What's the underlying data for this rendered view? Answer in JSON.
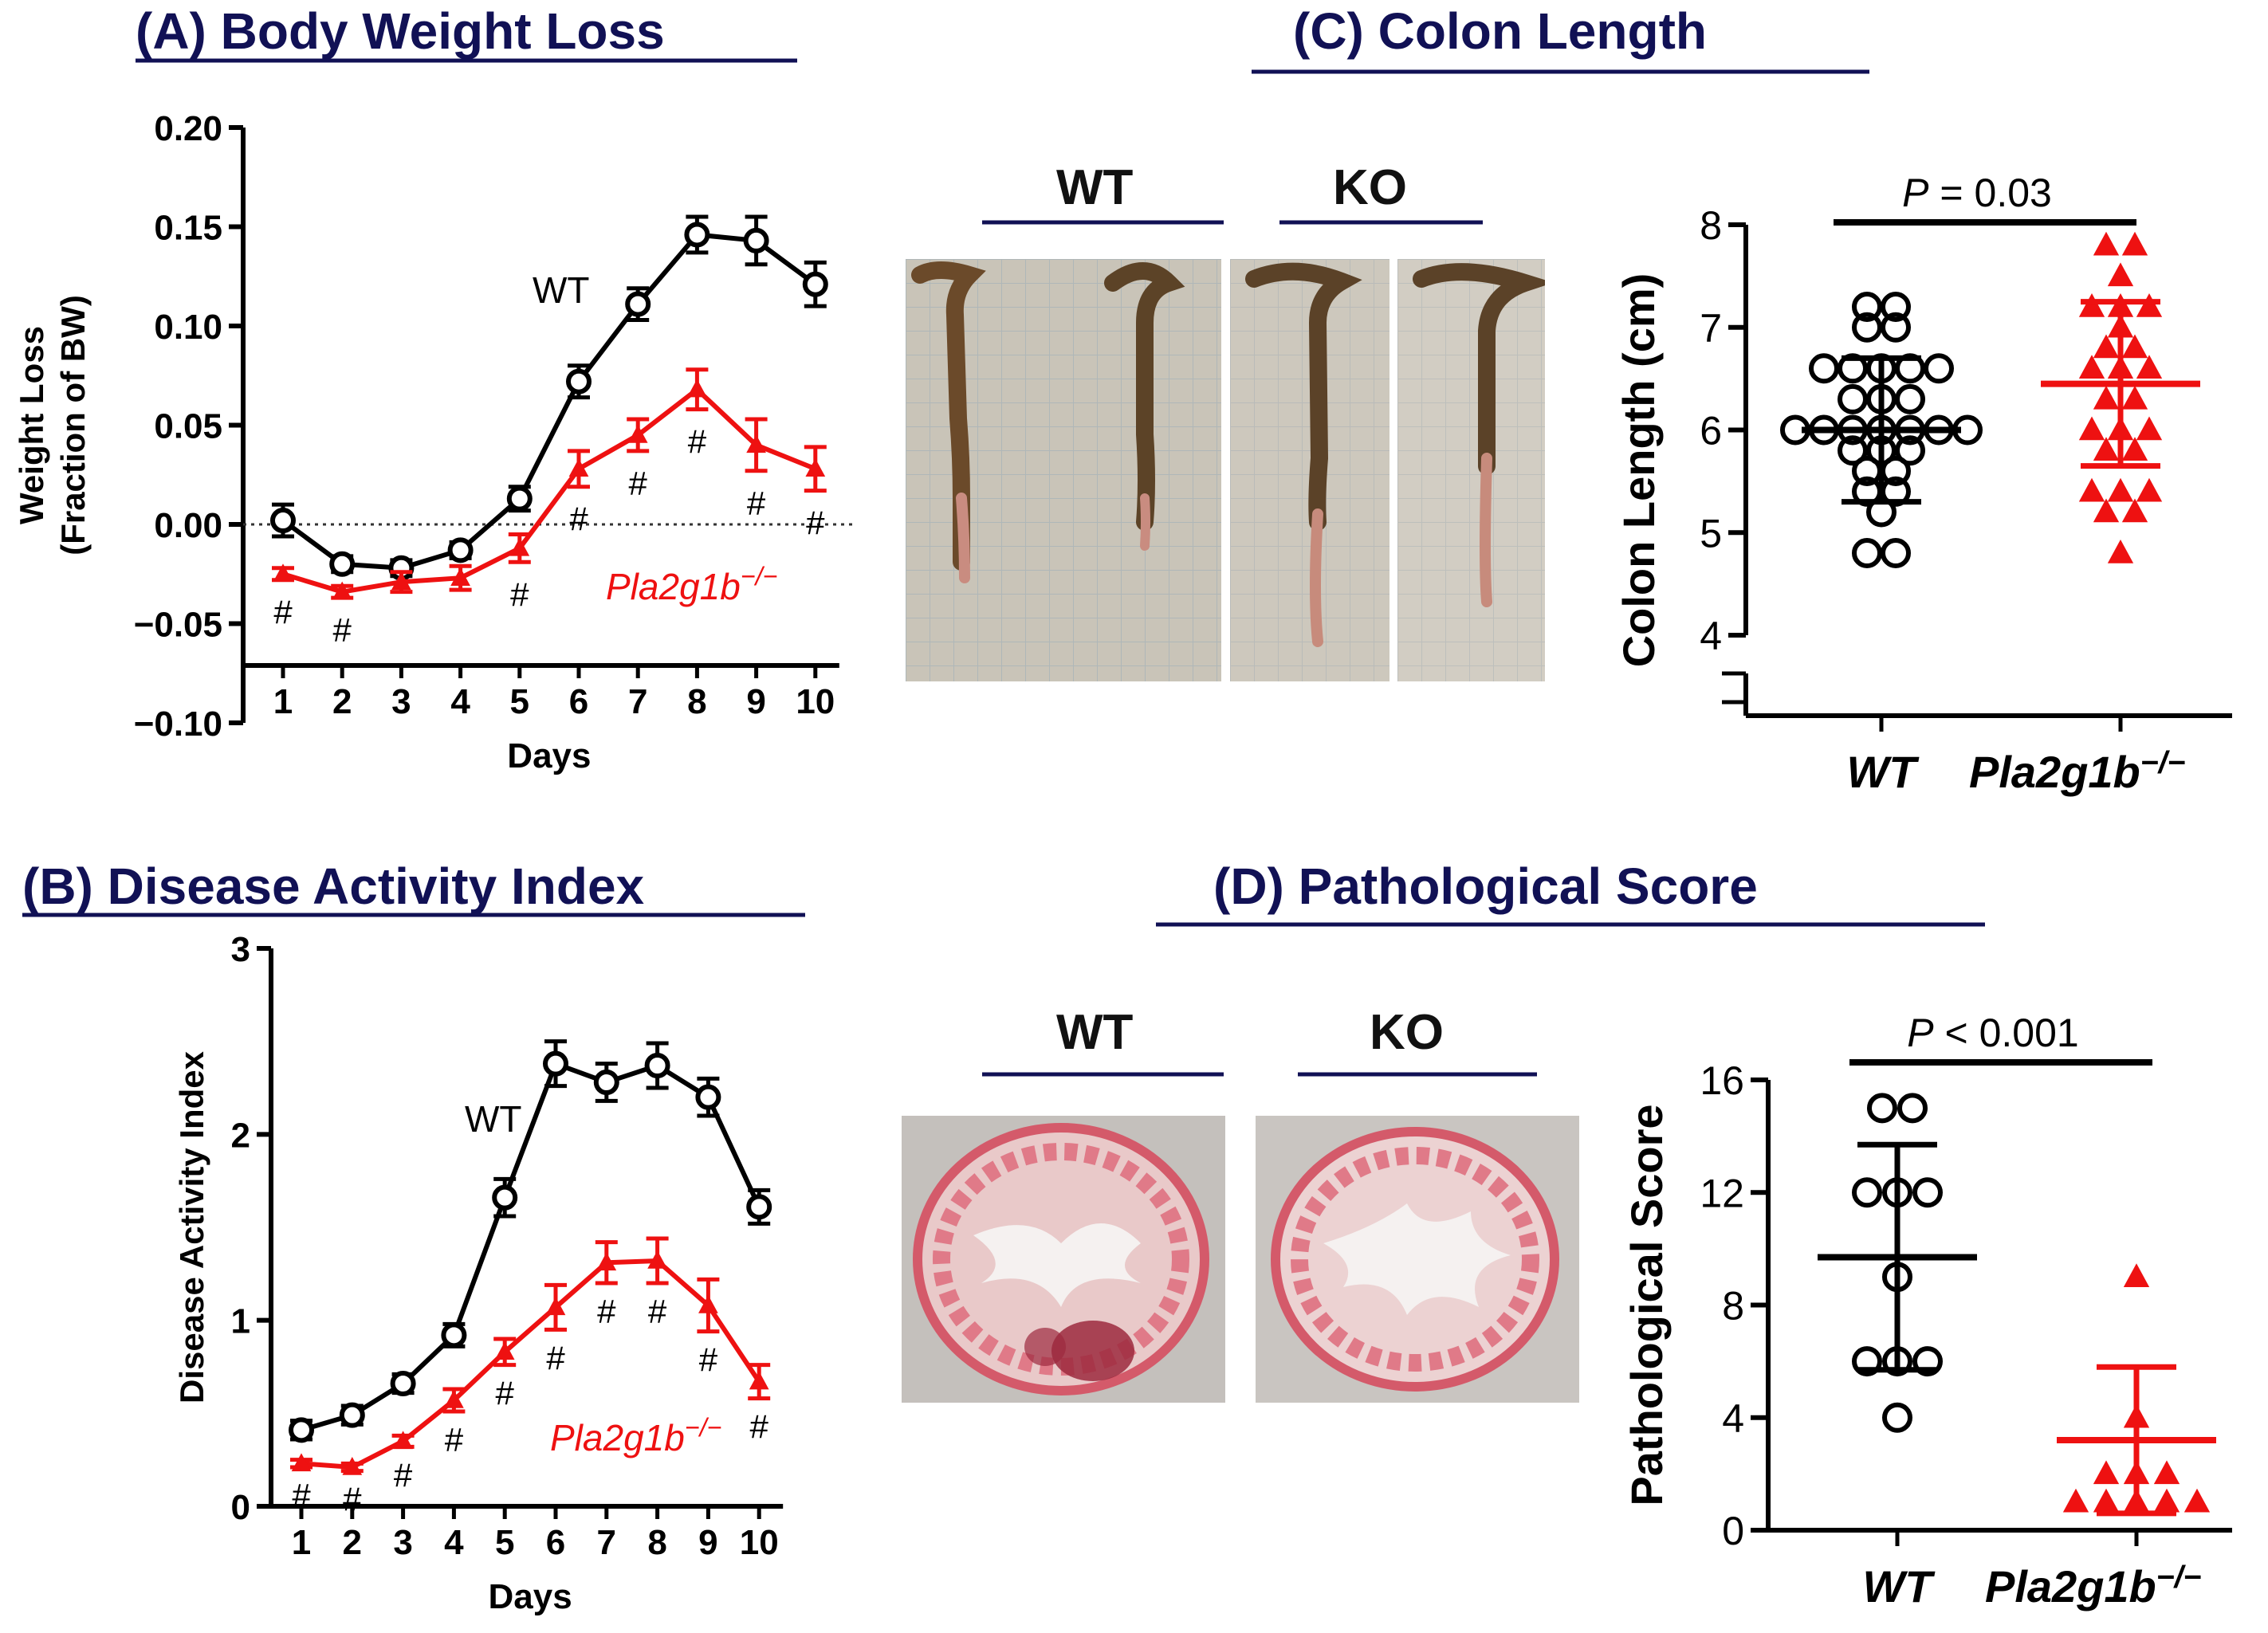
{
  "colors": {
    "wt": "#000000",
    "ko": "#ee1111",
    "title": "#111155",
    "title_rule": "#111155"
  },
  "panels": {
    "a": {
      "title": "(A) Body Weight Loss"
    },
    "b": {
      "title": "(B) Disease Activity Index"
    },
    "c": {
      "title": "(C) Colon Length",
      "photo_labels": [
        "WT",
        "KO"
      ]
    },
    "d": {
      "title": "(D) Pathological Score",
      "photo_labels": [
        "WT",
        "KO"
      ]
    }
  },
  "chart_data": [
    {
      "id": "A",
      "type": "line",
      "ylabel_lines": [
        "Weight Loss",
        "(Fraction of BW)"
      ],
      "xlabel": "Days",
      "x": [
        1,
        2,
        3,
        4,
        5,
        6,
        7,
        8,
        9,
        10
      ],
      "ylim": [
        -0.1,
        0.2
      ],
      "yticks": [
        -0.1,
        -0.05,
        0.0,
        0.05,
        0.1,
        0.15,
        0.2
      ],
      "ytick_labels": [
        "−0.10",
        "−0.05",
        "0.00",
        "0.05",
        "0.10",
        "0.15",
        "0.20"
      ],
      "reference_line": 0.0,
      "series": [
        {
          "name": "WT",
          "label": "WT",
          "marker": "circle",
          "values": [
            0.002,
            -0.02,
            -0.022,
            -0.013,
            0.013,
            0.072,
            0.111,
            0.146,
            0.143,
            0.121
          ],
          "errors": [
            0.008,
            0.004,
            0.004,
            0.004,
            0.006,
            0.008,
            0.008,
            0.009,
            0.012,
            0.011
          ]
        },
        {
          "name": "Pla2g1b−/−",
          "label": "Pla2g1b−/−",
          "marker": "triangle",
          "values": [
            -0.025,
            -0.034,
            -0.029,
            -0.027,
            -0.012,
            0.028,
            0.045,
            0.068,
            0.04,
            0.028
          ],
          "errors": [
            0.003,
            0.003,
            0.005,
            0.006,
            0.007,
            0.009,
            0.008,
            0.01,
            0.013,
            0.011
          ]
        }
      ],
      "significance": {
        "symbol": "#",
        "days": [
          1,
          2,
          5,
          6,
          7,
          8,
          9,
          10
        ]
      }
    },
    {
      "id": "B",
      "type": "line",
      "ylabel_lines": [
        "Disease Activity Index"
      ],
      "xlabel": "Days",
      "x": [
        1,
        2,
        3,
        4,
        5,
        6,
        7,
        8,
        9,
        10
      ],
      "ylim": [
        0,
        3
      ],
      "yticks": [
        0,
        1,
        2,
        3
      ],
      "ytick_labels": [
        "0",
        "1",
        "2",
        "3"
      ],
      "series": [
        {
          "name": "WT",
          "label": "WT",
          "marker": "circle",
          "values": [
            0.41,
            0.49,
            0.66,
            0.92,
            1.66,
            2.38,
            2.28,
            2.37,
            2.2,
            1.61
          ],
          "errors": [
            0.05,
            0.05,
            0.05,
            0.06,
            0.1,
            0.12,
            0.1,
            0.12,
            0.1,
            0.09
          ]
        },
        {
          "name": "Pla2g1b−/−",
          "label": "Pla2g1b−/−",
          "marker": "triangle",
          "values": [
            0.23,
            0.21,
            0.35,
            0.57,
            0.83,
            1.07,
            1.31,
            1.32,
            1.08,
            0.67
          ],
          "errors": [
            0.02,
            0.02,
            0.03,
            0.06,
            0.07,
            0.12,
            0.11,
            0.12,
            0.14,
            0.09
          ]
        }
      ],
      "significance": {
        "symbol": "#",
        "days": [
          1,
          2,
          3,
          4,
          5,
          6,
          7,
          8,
          9,
          10
        ]
      }
    },
    {
      "id": "C",
      "type": "scatter",
      "ylabel": "Colon Length (cm)",
      "categories": [
        "WT",
        "Pla2g1b−/−"
      ],
      "ylim": [
        4,
        8
      ],
      "yticks": [
        4,
        5,
        6,
        7,
        8
      ],
      "ytick_labels": [
        "4",
        "5",
        "6",
        "7",
        "8"
      ],
      "axis_break": true,
      "p_value": {
        "italic": "P",
        "rest": " = 0.03"
      },
      "series": [
        {
          "name": "WT",
          "marker": "circle",
          "mean": 6.0,
          "sd_low": 5.3,
          "sd_high": 6.7,
          "values": [
            7.2,
            7.2,
            7.0,
            7.0,
            6.6,
            6.6,
            6.6,
            6.6,
            6.6,
            6.3,
            6.3,
            6.3,
            6.0,
            6.0,
            6.0,
            6.0,
            6.0,
            6.0,
            6.0,
            5.8,
            5.8,
            5.8,
            5.6,
            5.6,
            5.4,
            5.4,
            5.2,
            4.8,
            4.8
          ]
        },
        {
          "name": "Pla2g1b−/−",
          "marker": "triangle",
          "mean": 6.45,
          "sd_low": 5.65,
          "sd_high": 7.25,
          "values": [
            7.8,
            7.8,
            7.5,
            7.2,
            7.2,
            7.2,
            7.0,
            6.8,
            6.8,
            6.6,
            6.6,
            6.6,
            6.3,
            6.3,
            6.0,
            6.0,
            6.0,
            5.8,
            5.8,
            5.4,
            5.4,
            5.4,
            5.2,
            5.2,
            4.8
          ]
        }
      ]
    },
    {
      "id": "D",
      "type": "scatter",
      "ylabel": "Pathological  Score",
      "categories": [
        "WT",
        "Pla2g1b−/−"
      ],
      "ylim": [
        0,
        16
      ],
      "yticks": [
        0,
        4,
        8,
        12,
        16
      ],
      "ytick_labels": [
        "0",
        "4",
        "8",
        "12",
        "16"
      ],
      "p_value": {
        "italic": "P",
        "rest": " < 0.001"
      },
      "series": [
        {
          "name": "WT",
          "marker": "circle",
          "mean": 9.7,
          "sd_low": 5.7,
          "sd_high": 13.7,
          "values": [
            15,
            15,
            12,
            12,
            12,
            9,
            6,
            6,
            6,
            4
          ]
        },
        {
          "name": "Pla2g1b−/−",
          "marker": "triangle",
          "mean": 3.2,
          "sd_low": 0.6,
          "sd_high": 5.8,
          "values": [
            9,
            4,
            2,
            2,
            2,
            1,
            1,
            1,
            1,
            1
          ]
        }
      ]
    }
  ]
}
